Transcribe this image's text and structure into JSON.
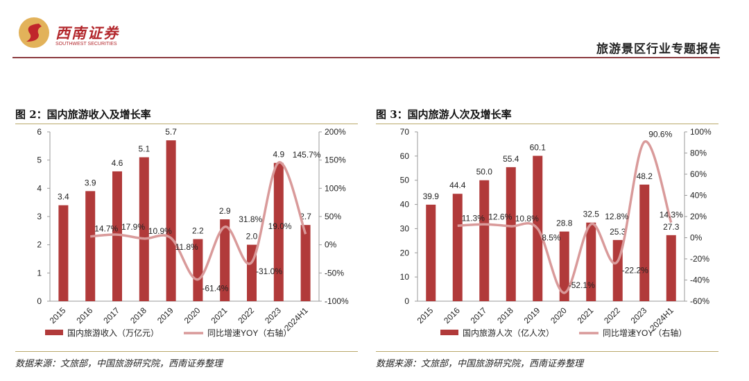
{
  "header": {
    "logo_cn": "西南证券",
    "logo_en": "SOUTHWEST SECURITIES",
    "report_title": "旅游景区行业专题报告"
  },
  "colors": {
    "bar": "#b13a3a",
    "line": "#d99a9a",
    "accent": "#8b3a3f"
  },
  "chart_data": [
    {
      "type": "bar",
      "title": "图 2：国内旅游收入及增长率",
      "categories": [
        "2015",
        "2016",
        "2017",
        "2018",
        "2019",
        "2020",
        "2021",
        "2022",
        "2023",
        "2024H1"
      ],
      "series": [
        {
          "name": "国内旅游收入（万亿元）",
          "type": "bar",
          "axis": "left",
          "values": [
            3.4,
            3.9,
            4.6,
            5.1,
            5.7,
            2.2,
            2.9,
            2.0,
            4.9,
            2.7
          ],
          "labels": [
            "3.4",
            "3.9",
            "4.6",
            "5.1",
            "5.7",
            "2.2",
            "2.9",
            "2.0",
            "4.9",
            "2.7"
          ]
        },
        {
          "name": "同比增速YOY（右轴）",
          "type": "line",
          "axis": "right",
          "values": [
            null,
            14.7,
            17.9,
            10.9,
            11.8,
            -61.4,
            31.8,
            -31.0,
            145.7,
            19.0
          ],
          "labels": [
            "",
            "14.7%",
            "17.9%",
            "10.9%",
            "11.8%",
            "-61.4%",
            "31.8%",
            "-31.0%",
            "145.7%",
            "19.0%"
          ]
        }
      ],
      "ylim": [
        0,
        6
      ],
      "yticks": [
        "0",
        "1",
        "2",
        "3",
        "4",
        "5",
        "6"
      ],
      "y2lim": [
        -100,
        200
      ],
      "y2ticks": [
        "-100%",
        "-50%",
        "0%",
        "50%",
        "100%",
        "150%",
        "200%"
      ],
      "legend": "bottom",
      "source": "数据来源：文旅部，中国旅游研究院，西南证券整理"
    },
    {
      "type": "bar",
      "title": "图 3：国内旅游人次及增长率",
      "categories": [
        "2015",
        "2016",
        "2017",
        "2018",
        "2019",
        "2020",
        "2021",
        "2022",
        "2023",
        "2024H1"
      ],
      "series": [
        {
          "name": "国内旅游人次（亿人次）",
          "type": "bar",
          "axis": "left",
          "values": [
            39.9,
            44.4,
            50.0,
            55.4,
            60.1,
            28.8,
            32.5,
            25.3,
            48.2,
            27.3
          ],
          "labels": [
            "39.9",
            "44.4",
            "50.0",
            "55.4",
            "60.1",
            "28.8",
            "32.5",
            "25.3",
            "48.2",
            "27.3"
          ]
        },
        {
          "name": "同比增速YOY（右轴）",
          "type": "line",
          "axis": "right",
          "values": [
            null,
            11.3,
            12.6,
            10.8,
            8.5,
            -52.1,
            12.8,
            -22.2,
            90.6,
            14.3
          ],
          "labels": [
            "",
            "11.3%",
            "12.6%",
            "10.8%",
            "8.5%",
            "-52.1%",
            "12.8%",
            "-22.2%",
            "90.6%",
            "14.3%"
          ]
        }
      ],
      "ylim": [
        0,
        70
      ],
      "yticks": [
        "0",
        "10",
        "20",
        "30",
        "40",
        "50",
        "60",
        "70"
      ],
      "y2lim": [
        -60,
        100
      ],
      "y2ticks": [
        "-60%",
        "-40%",
        "-20%",
        "0%",
        "20%",
        "40%",
        "60%",
        "80%",
        "100%"
      ],
      "legend": "bottom",
      "source": "数据来源：文旅部，中国旅游研究院，西南证券整理"
    }
  ]
}
